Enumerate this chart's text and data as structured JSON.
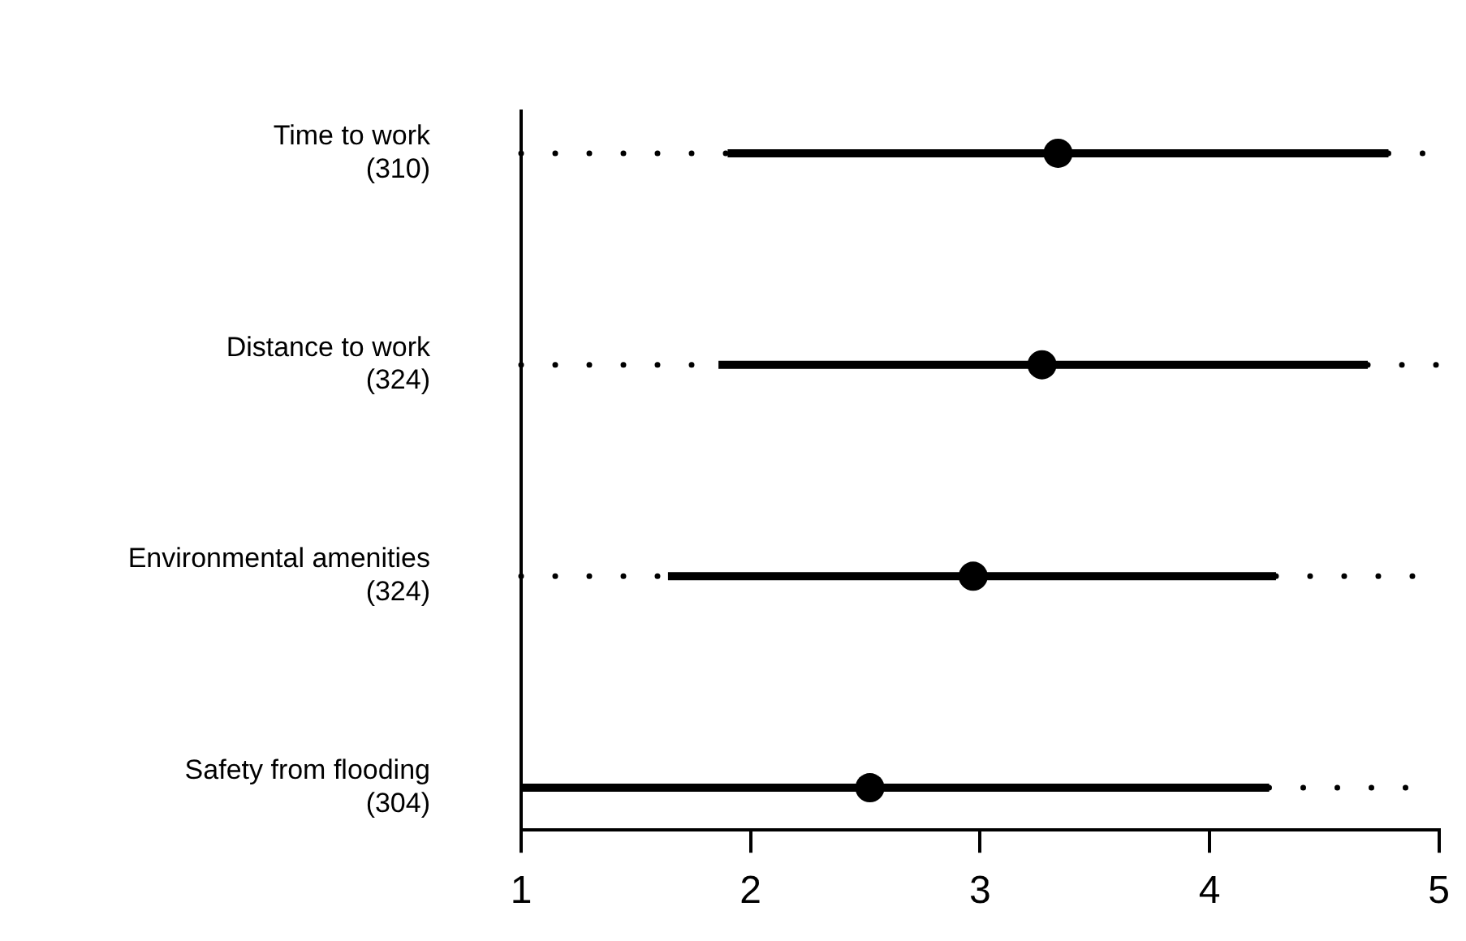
{
  "chart_data": {
    "type": "box",
    "orientation": "horizontal",
    "color": "#000000",
    "categories": [
      "Time to work\n(310)",
      "Distance to work\n(324)",
      "Environmental amenities\n(324)",
      "Safety from flooding\n(304)"
    ],
    "boxes": [
      {
        "low": 1,
        "q1": 1.9,
        "median": 3.34,
        "q3": 4.78,
        "high": 5
      },
      {
        "low": 1,
        "q1": 1.86,
        "median": 3.27,
        "q3": 4.69,
        "high": 5
      },
      {
        "low": 1,
        "q1": 1.64,
        "median": 2.97,
        "q3": 4.29,
        "high": 5
      },
      {
        "low": 1,
        "q1": 1,
        "median": 2.52,
        "q3": 4.26,
        "high": 5
      }
    ],
    "xlim": [
      1,
      5
    ],
    "xticks": [
      1,
      2,
      3,
      4,
      5
    ]
  }
}
